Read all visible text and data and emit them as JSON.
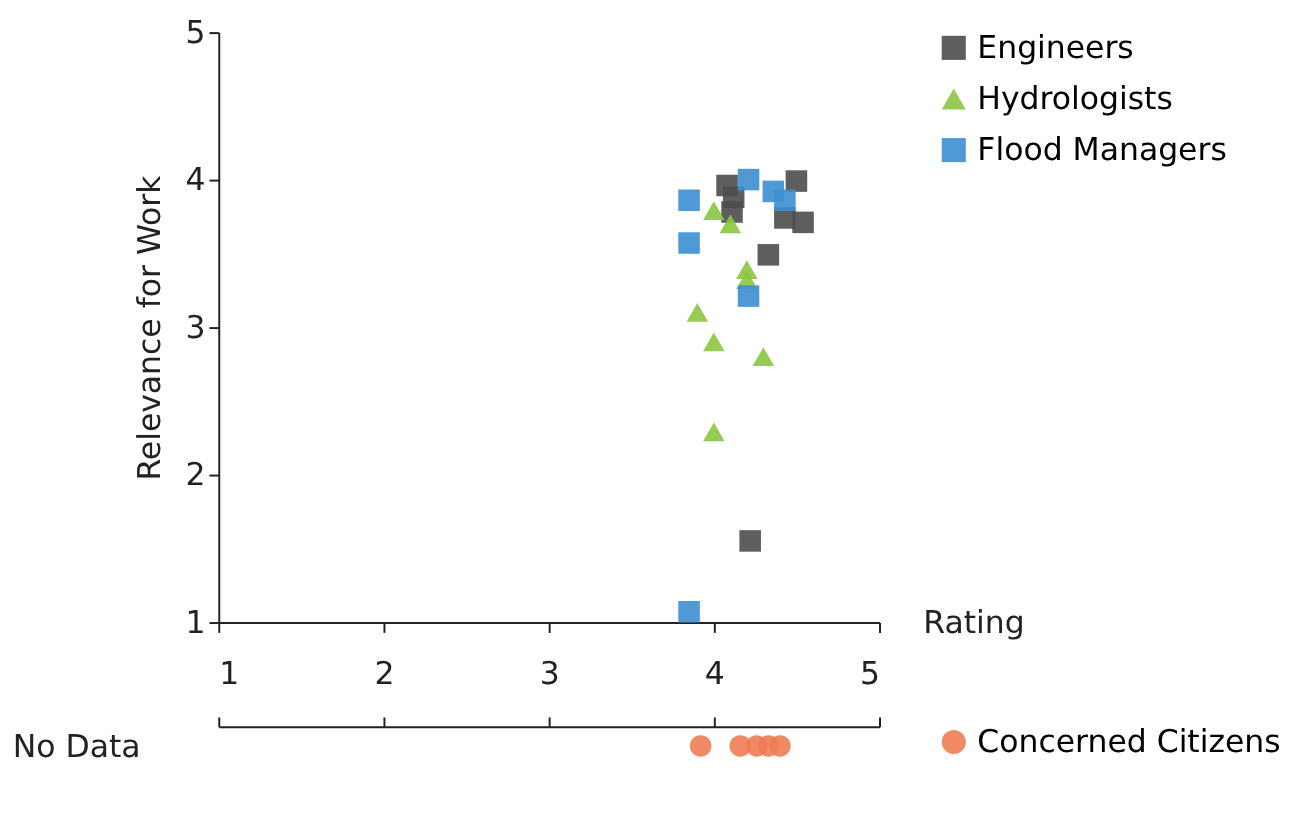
{
  "chart_data": [
    {
      "type": "scatter",
      "xlabel": "Rating",
      "ylabel": "Relevance for Work",
      "xlim": [
        1,
        5
      ],
      "ylim": [
        1,
        5
      ],
      "xticks": [
        1,
        2,
        3,
        4,
        5
      ],
      "yticks": [
        1,
        2,
        3,
        4,
        5
      ],
      "grid": false,
      "legend": "top right",
      "tick_labels": "y",
      "series": [
        {
          "name": "Engineers",
          "color": "#4d4d4d",
          "marker": "square",
          "x": [
            4.08,
            4.12,
            4.11,
            4.5,
            4.43,
            4.54,
            4.33,
            4.22
          ],
          "values": [
            3.96,
            3.88,
            3.78,
            3.99,
            3.74,
            3.71,
            3.49,
            1.55
          ]
        },
        {
          "name": "Hydrologists",
          "color": "#8cc63f",
          "marker": "triangle",
          "x": [
            4.0,
            4.1,
            4.2,
            4.2,
            3.9,
            4.0,
            4.3,
            4.0
          ],
          "values": [
            3.79,
            3.7,
            3.39,
            3.32,
            3.1,
            2.9,
            2.8,
            2.29
          ]
        },
        {
          "name": "Flood Managers",
          "color": "#3c8fd2",
          "marker": "square",
          "x": [
            4.21,
            3.85,
            4.36,
            4.43,
            3.85,
            4.21,
            3.85
          ],
          "values": [
            4.0,
            3.86,
            3.92,
            3.86,
            3.57,
            3.21,
            1.07
          ]
        }
      ]
    },
    {
      "type": "scatter",
      "orientation": "horizontal",
      "categories": [
        "No Data"
      ],
      "xlim": [
        1,
        5
      ],
      "xticks": [
        1,
        2,
        3,
        4,
        5
      ],
      "grid": false,
      "legend": "right",
      "series": [
        {
          "name": "Concerned Citizens",
          "color": "#f07c54",
          "marker": "circle",
          "x": [
            "No Data",
            "No Data",
            "No Data",
            "No Data",
            "No Data"
          ],
          "values": [
            3.92,
            4.16,
            4.26,
            4.33,
            4.4
          ]
        }
      ]
    }
  ]
}
